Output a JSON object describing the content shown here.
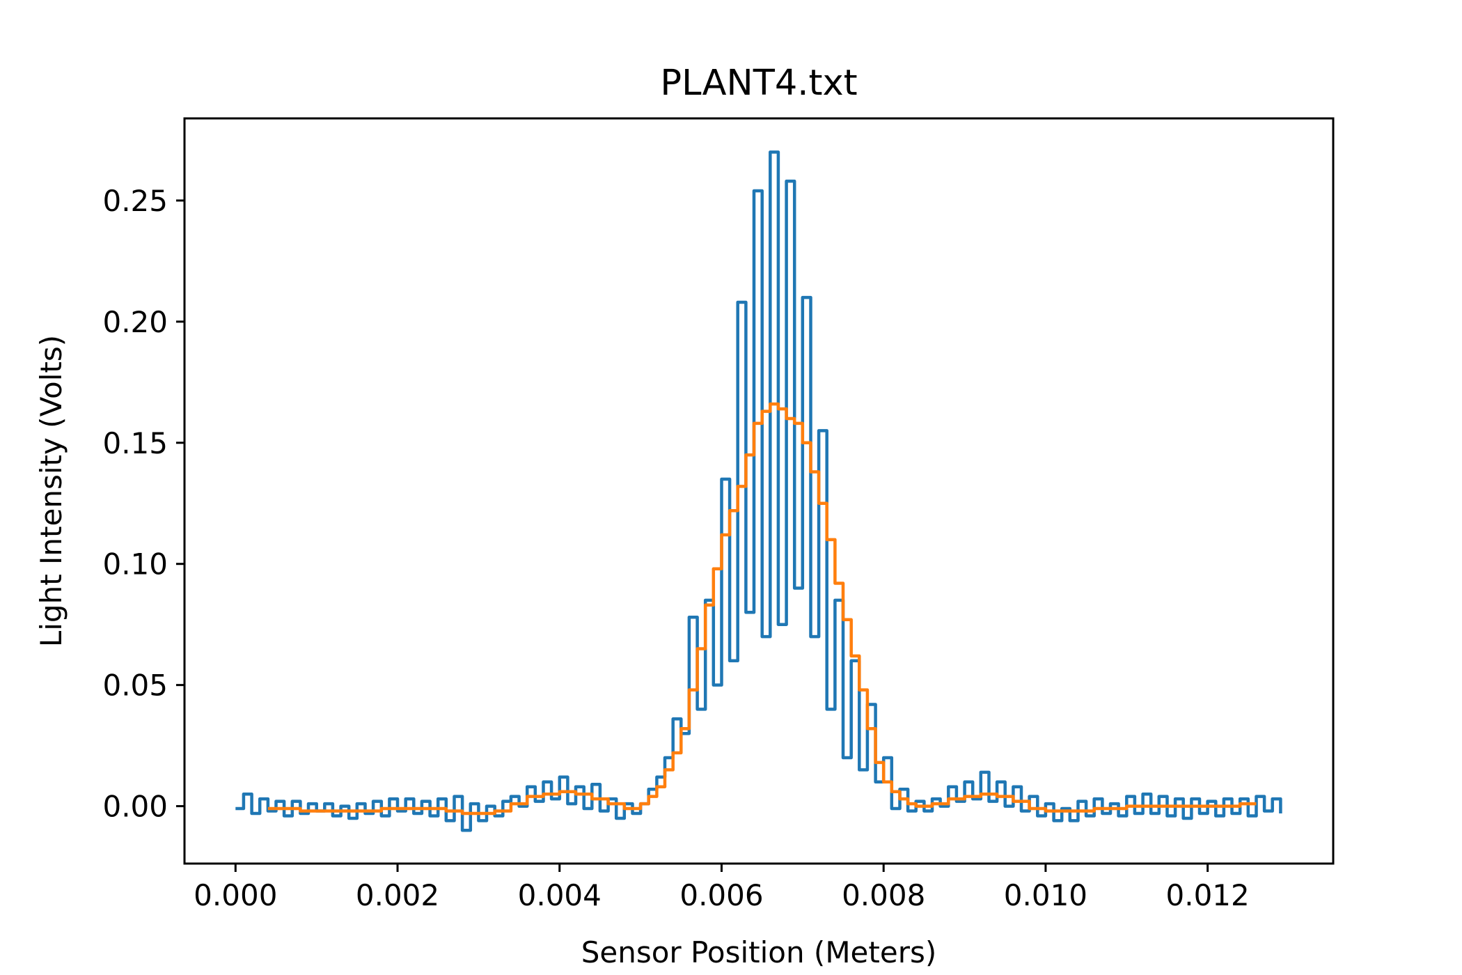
{
  "chart_data": {
    "type": "line",
    "title": "PLANT4.txt",
    "xlabel": "Sensor Position (Meters)",
    "ylabel": "Light Intensity (Volts)",
    "xlim": [
      -0.00063,
      0.01355
    ],
    "ylim": [
      -0.0237,
      0.2839
    ],
    "x_ticks": [
      0.0,
      0.002,
      0.004,
      0.006,
      0.008,
      0.01,
      0.012
    ],
    "x_tick_labels": [
      "0.000",
      "0.002",
      "0.004",
      "0.006",
      "0.008",
      "0.010",
      "0.012"
    ],
    "y_ticks": [
      0.0,
      0.05,
      0.1,
      0.15,
      0.2,
      0.25
    ],
    "y_tick_labels": [
      "0.00",
      "0.05",
      "0.10",
      "0.15",
      "0.20",
      "0.25"
    ],
    "grid": false,
    "colors": {
      "raw": "#1f77b4",
      "smoothed": "#ff7f0e"
    },
    "series": [
      {
        "x": [
          0.0,
          0.0001,
          0.0002,
          0.0003,
          0.0004,
          0.0005,
          0.0006,
          0.0007,
          0.0008,
          0.0009,
          0.001,
          0.0011,
          0.0012,
          0.0013,
          0.0014,
          0.0015,
          0.0016,
          0.0017,
          0.0018,
          0.0019,
          0.002,
          0.0021,
          0.0022,
          0.0023,
          0.0024,
          0.0025,
          0.0026,
          0.0027,
          0.0028,
          0.0029,
          0.003,
          0.0031,
          0.0032,
          0.0033,
          0.0034,
          0.0035,
          0.0036,
          0.0037,
          0.0038,
          0.0039,
          0.004,
          0.0041,
          0.0042,
          0.0043,
          0.0044,
          0.0045,
          0.0046,
          0.0047,
          0.0048,
          0.0049,
          0.005,
          0.0051,
          0.0052,
          0.0053,
          0.0054,
          0.0055,
          0.0056,
          0.0057,
          0.0058,
          0.0059,
          0.006,
          0.0061,
          0.0062,
          0.0063,
          0.0064,
          0.0065,
          0.0066,
          0.0067,
          0.0068,
          0.0069,
          0.007,
          0.0071,
          0.0072,
          0.0073,
          0.0074,
          0.0075,
          0.0076,
          0.0077,
          0.0078,
          0.0079,
          0.008,
          0.0081,
          0.0082,
          0.0083,
          0.0084,
          0.0085,
          0.0086,
          0.0087,
          0.0088,
          0.0089,
          0.009,
          0.0091,
          0.0092,
          0.0093,
          0.0094,
          0.0095,
          0.0096,
          0.0097,
          0.0098,
          0.0099,
          0.01,
          0.0101,
          0.0102,
          0.0103,
          0.0104,
          0.0105,
          0.0106,
          0.0107,
          0.0108,
          0.0109,
          0.011,
          0.0111,
          0.0112,
          0.0113,
          0.0114,
          0.0115,
          0.0116,
          0.0117,
          0.0118,
          0.0119,
          0.012,
          0.0121,
          0.0122,
          0.0123,
          0.0124,
          0.0125,
          0.0126,
          0.0127,
          0.0128,
          0.0129
        ],
        "y": [
          -0.001,
          0.005,
          -0.003,
          0.003,
          -0.002,
          0.002,
          -0.004,
          0.002,
          -0.003,
          0.001,
          -0.002,
          0.001,
          -0.004,
          0.0,
          -0.005,
          0.001,
          -0.003,
          0.002,
          -0.004,
          0.003,
          -0.002,
          0.003,
          -0.003,
          0.002,
          -0.004,
          0.003,
          -0.006,
          0.004,
          -0.01,
          0.001,
          -0.006,
          0.0,
          -0.004,
          0.002,
          0.004,
          0.0,
          0.008,
          0.002,
          0.01,
          0.003,
          0.012,
          0.001,
          0.008,
          -0.001,
          0.009,
          -0.002,
          0.003,
          -0.005,
          0.001,
          -0.003,
          0.001,
          0.007,
          0.012,
          0.02,
          0.036,
          0.03,
          0.078,
          0.04,
          0.085,
          0.05,
          0.135,
          0.06,
          0.208,
          0.08,
          0.254,
          0.07,
          0.27,
          0.075,
          0.258,
          0.09,
          0.21,
          0.07,
          0.155,
          0.04,
          0.085,
          0.02,
          0.06,
          0.015,
          0.042,
          0.01,
          0.02,
          -0.001,
          0.007,
          -0.002,
          0.002,
          -0.002,
          0.003,
          0.0,
          0.008,
          0.002,
          0.01,
          0.003,
          0.014,
          0.002,
          0.01,
          0.0,
          0.008,
          -0.002,
          0.004,
          -0.004,
          0.001,
          -0.006,
          -0.001,
          -0.006,
          0.002,
          -0.004,
          0.003,
          -0.003,
          0.001,
          -0.004,
          0.004,
          -0.003,
          0.005,
          -0.003,
          0.004,
          -0.004,
          0.003,
          -0.005,
          0.003,
          -0.003,
          0.002,
          -0.004,
          0.003,
          -0.003,
          0.003,
          -0.004,
          0.004,
          -0.002,
          0.003,
          -0.003
        ]
      },
      {
        "x": [
          0.0004,
          0.0006,
          0.0008,
          0.001,
          0.0012,
          0.0014,
          0.0016,
          0.0018,
          0.002,
          0.0022,
          0.0024,
          0.0026,
          0.0028,
          0.003,
          0.0032,
          0.0034,
          0.0036,
          0.0038,
          0.004,
          0.0042,
          0.0044,
          0.0046,
          0.0048,
          0.005,
          0.0051,
          0.0052,
          0.0053,
          0.0054,
          0.0055,
          0.0056,
          0.0057,
          0.0058,
          0.0059,
          0.006,
          0.0061,
          0.0062,
          0.0063,
          0.0064,
          0.0065,
          0.0066,
          0.0067,
          0.0068,
          0.0069,
          0.007,
          0.0071,
          0.0072,
          0.0073,
          0.0074,
          0.0075,
          0.0076,
          0.0077,
          0.0078,
          0.0079,
          0.008,
          0.0081,
          0.0082,
          0.0083,
          0.0084,
          0.0086,
          0.0088,
          0.009,
          0.0092,
          0.0094,
          0.0096,
          0.0098,
          0.01,
          0.0102,
          0.0104,
          0.0106,
          0.0108,
          0.011,
          0.0112,
          0.0114,
          0.0116,
          0.0118,
          0.012,
          0.0122,
          0.0124,
          0.0126
        ],
        "y": [
          -0.001,
          -0.001,
          -0.002,
          -0.002,
          -0.002,
          -0.002,
          -0.002,
          -0.001,
          -0.001,
          -0.001,
          -0.001,
          -0.002,
          -0.003,
          -0.003,
          -0.002,
          0.001,
          0.004,
          0.005,
          0.006,
          0.005,
          0.003,
          0.001,
          -0.001,
          0.001,
          0.004,
          0.008,
          0.015,
          0.022,
          0.032,
          0.048,
          0.065,
          0.083,
          0.098,
          0.112,
          0.122,
          0.132,
          0.145,
          0.158,
          0.163,
          0.166,
          0.164,
          0.16,
          0.158,
          0.15,
          0.138,
          0.125,
          0.11,
          0.092,
          0.077,
          0.062,
          0.048,
          0.032,
          0.018,
          0.01,
          0.006,
          0.003,
          0.001,
          0.0,
          0.001,
          0.003,
          0.004,
          0.005,
          0.004,
          0.002,
          -0.001,
          -0.002,
          -0.002,
          -0.002,
          -0.001,
          -0.001,
          0.0,
          0.0,
          0.0,
          0.0,
          0.0,
          0.0,
          0.0,
          0.001,
          0.001
        ]
      }
    ]
  }
}
